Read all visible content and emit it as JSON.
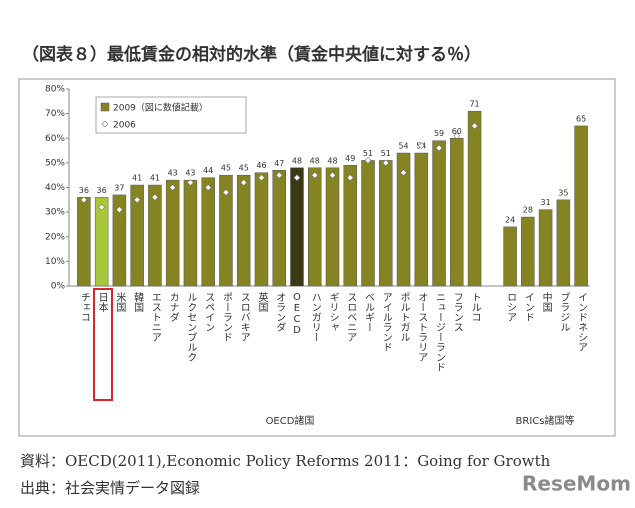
{
  "chart_data": {
    "type": "bar",
    "title": "（図表８）最低賃金の相対的水準（賃金中央値に対する％）",
    "categories": [
      "チェコ",
      "日本",
      "米国",
      "韓国",
      "エストニア",
      "カナダ",
      "ルクセンブルク",
      "スペイン",
      "ポーランド",
      "スロバキア",
      "英国",
      "オランダ",
      "OECD",
      "ハンガリー",
      "ギリシャ",
      "スロベニア",
      "ベルギー",
      "アイルランド",
      "ポルトガル",
      "オーストラリア",
      "ニュージーランド",
      "フランス",
      "トルコ",
      null,
      "ロシア",
      "インド",
      "中国",
      "ブラジル",
      "インドネシア"
    ],
    "series": [
      {
        "name": "2009（図に数値記載）",
        "color": "#858322",
        "colors": [
          "#858322",
          "#a8c83c",
          "#858322",
          "#858322",
          "#858322",
          "#858322",
          "#858322",
          "#858322",
          "#858322",
          "#858322",
          "#858322",
          "#858322",
          "#3b3914",
          "#858322",
          "#858322",
          "#858322",
          "#858322",
          "#858322",
          "#858322",
          "#858322",
          "#858322",
          "#858322",
          "#858322",
          null,
          "#858322",
          "#858322",
          "#858322",
          "#858322",
          "#858322"
        ],
        "values": [
          36,
          36,
          37,
          41,
          41,
          43,
          43,
          44,
          45,
          45,
          46,
          47,
          48,
          48,
          48,
          49,
          51,
          51,
          54,
          54,
          59,
          60,
          71,
          null,
          24,
          28,
          31,
          35,
          65
        ]
      },
      {
        "name": "2006",
        "color": "#ffffff",
        "values": [
          35,
          32,
          31,
          35,
          36,
          40,
          42,
          40,
          38,
          42,
          44,
          45,
          44,
          45,
          45,
          44,
          51,
          50,
          46,
          57,
          56,
          61,
          65,
          null,
          null,
          null,
          null,
          null,
          null
        ]
      }
    ],
    "ylim": [
      0,
      80
    ],
    "yticks": [
      {
        "value": 0,
        "label": "0%"
      },
      {
        "value": 10,
        "label": "10%"
      },
      {
        "value": 20,
        "label": "20%"
      },
      {
        "value": 30,
        "label": "30%"
      },
      {
        "value": 40,
        "label": "40%"
      },
      {
        "value": 50,
        "label": "50%"
      },
      {
        "value": 60,
        "label": "60%"
      },
      {
        "value": 70,
        "label": "70%"
      },
      {
        "value": 80,
        "label": "80%"
      }
    ],
    "grid": false,
    "legend": "upper-left",
    "group_labels": [
      "OECD諸国",
      "BRICs諸国等"
    ],
    "source": "資料：OECD(2011),Economic Policy Reforms 2011：Going for Growth",
    "credit": "出典：社会実情データ図録",
    "watermark": "ReseMom"
  }
}
